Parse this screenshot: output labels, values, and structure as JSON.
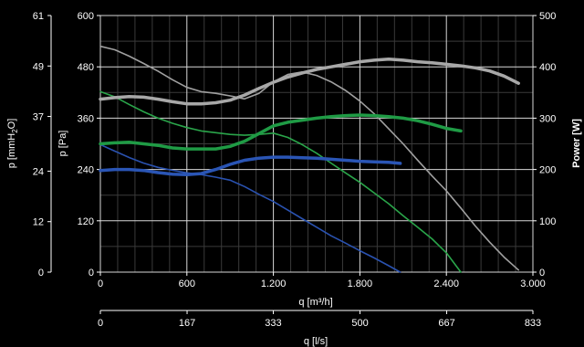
{
  "chart_data": {
    "type": "line",
    "title": "",
    "grid": true,
    "background": "#000000",
    "x_axis": {
      "label": "q [m³/h]",
      "range": [
        0,
        3000
      ],
      "ticks": [
        0,
        600,
        1200,
        1800,
        2400,
        3000
      ],
      "tick_labels": [
        "0",
        "600",
        "1.200",
        "1.800",
        "2.400",
        "3.000"
      ]
    },
    "x2_axis": {
      "label": "q [l/s]",
      "range": [
        0,
        833
      ],
      "ticks": [
        0,
        167,
        333,
        500,
        667,
        833
      ],
      "tick_labels": [
        "0",
        "167",
        "333",
        "500",
        "667",
        "833"
      ]
    },
    "y_axis": {
      "label": "p [Pa]",
      "range": [
        0,
        600
      ],
      "ticks": [
        0,
        120,
        240,
        360,
        480,
        600
      ],
      "tick_labels": [
        "0",
        "120",
        "240",
        "360",
        "480",
        "600"
      ]
    },
    "y2_axis": {
      "label_main": "p [mmH",
      "label_sub": "2",
      "label_end": "O]",
      "range": [
        0,
        61
      ],
      "ticks": [
        0,
        12,
        24,
        37,
        49,
        61
      ],
      "tick_labels": [
        "0",
        "12",
        "24",
        "37",
        "49",
        "61"
      ]
    },
    "y3_axis": {
      "label": "Power [W]",
      "range": [
        0,
        500
      ],
      "ticks": [
        0,
        100,
        200,
        300,
        400,
        500
      ],
      "tick_labels": [
        "0",
        "100",
        "200",
        "300",
        "400",
        "500"
      ]
    },
    "series": [
      {
        "color": "#a0a0a0",
        "kind": "pressure",
        "x": [
          0,
          100,
          200,
          300,
          400,
          500,
          600,
          700,
          800,
          900,
          1000,
          1100,
          1200,
          1300,
          1400,
          1500,
          1600,
          1700,
          1800,
          1900,
          2000,
          2100,
          2200,
          2300,
          2400,
          2500,
          2600,
          2700,
          2800,
          2900
        ],
        "y": [
          528,
          520,
          505,
          488,
          470,
          450,
          432,
          422,
          418,
          412,
          405,
          418,
          445,
          462,
          468,
          460,
          445,
          425,
          400,
          370,
          335,
          300,
          262,
          225,
          190,
          150,
          108,
          70,
          35,
          5
        ]
      },
      {
        "color": "#2aa54a",
        "kind": "pressure",
        "x": [
          0,
          100,
          200,
          300,
          400,
          500,
          600,
          700,
          800,
          900,
          1000,
          1100,
          1200,
          1300,
          1400,
          1500,
          1600,
          1700,
          1800,
          1900,
          2000,
          2100,
          2200,
          2300,
          2400,
          2500
        ],
        "y": [
          422,
          410,
          392,
          375,
          360,
          348,
          338,
          330,
          326,
          322,
          320,
          322,
          325,
          315,
          298,
          278,
          255,
          232,
          210,
          185,
          160,
          132,
          105,
          78,
          45,
          0
        ]
      },
      {
        "color": "#2a52b0",
        "kind": "pressure",
        "x": [
          0,
          100,
          200,
          300,
          400,
          500,
          600,
          700,
          800,
          900,
          1000,
          1100,
          1200,
          1300,
          1400,
          1500,
          1600,
          1700,
          1800,
          1900,
          2000,
          2080
        ],
        "y": [
          298,
          283,
          268,
          255,
          245,
          238,
          232,
          228,
          222,
          215,
          200,
          182,
          165,
          145,
          125,
          105,
          85,
          68,
          50,
          33,
          15,
          0
        ]
      },
      {
        "color": "#a8a8a8",
        "kind": "power",
        "x": [
          0,
          100,
          200,
          300,
          400,
          500,
          600,
          700,
          800,
          900,
          1000,
          1100,
          1200,
          1300,
          1400,
          1500,
          1600,
          1700,
          1800,
          1900,
          2000,
          2100,
          2200,
          2300,
          2400,
          2500,
          2600,
          2700,
          2800,
          2900
        ],
        "y": [
          337,
          340,
          342,
          341,
          337,
          332,
          328,
          328,
          330,
          335,
          345,
          358,
          370,
          380,
          388,
          395,
          400,
          405,
          410,
          413,
          415,
          413,
          410,
          408,
          405,
          402,
          398,
          392,
          382,
          368
        ]
      },
      {
        "color": "#1f9b45",
        "kind": "power",
        "x": [
          0,
          100,
          200,
          300,
          400,
          500,
          600,
          700,
          800,
          900,
          1000,
          1100,
          1200,
          1300,
          1400,
          1500,
          1600,
          1700,
          1800,
          1900,
          2000,
          2100,
          2200,
          2300,
          2400,
          2500
        ],
        "y": [
          250,
          252,
          253,
          250,
          247,
          242,
          240,
          240,
          240,
          245,
          255,
          270,
          285,
          292,
          296,
          300,
          303,
          305,
          306,
          305,
          303,
          300,
          295,
          288,
          280,
          275
        ]
      },
      {
        "color": "#2a55b5",
        "kind": "power",
        "x": [
          0,
          100,
          200,
          300,
          400,
          500,
          600,
          700,
          800,
          900,
          1000,
          1100,
          1200,
          1300,
          1400,
          1500,
          1600,
          1700,
          1800,
          1900,
          2000,
          2080
        ],
        "y": [
          198,
          200,
          200,
          198,
          194,
          191,
          190,
          192,
          200,
          210,
          218,
          222,
          224,
          224,
          223,
          222,
          220,
          218,
          216,
          215,
          214,
          212
        ]
      }
    ]
  }
}
